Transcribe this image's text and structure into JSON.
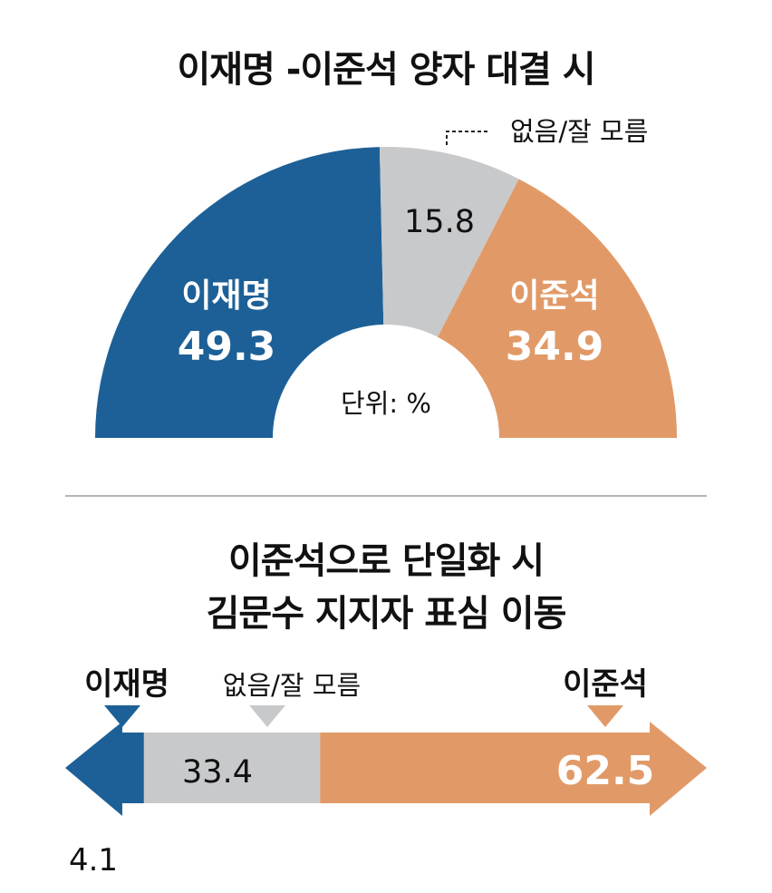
{
  "chart_data": [
    {
      "type": "pie",
      "title": "이재명 -이준석 양자 대결 시",
      "unit_note": "단위: %",
      "slices": [
        {
          "label": "이재명",
          "value": 49.3,
          "color": "#1d6097"
        },
        {
          "label": "없음/잘 모름",
          "value": 15.8,
          "color": "#c8c9cb"
        },
        {
          "label": "이준석",
          "value": 34.9,
          "color": "#e19a67"
        }
      ]
    },
    {
      "type": "bar",
      "title_lines": [
        "이준석으로 단일화 시",
        "김문수 지지자 표심 이동"
      ],
      "segments": [
        {
          "label": "이재명",
          "value": 4.1,
          "color": "#1d6097"
        },
        {
          "label": "없음/잘 모름",
          "value": 33.4,
          "color": "#c8c9cb"
        },
        {
          "label": "이준석",
          "value": 62.5,
          "color": "#e19a67"
        }
      ]
    }
  ],
  "colors": {
    "text": "#111111",
    "divider": "#b5b5b5"
  }
}
